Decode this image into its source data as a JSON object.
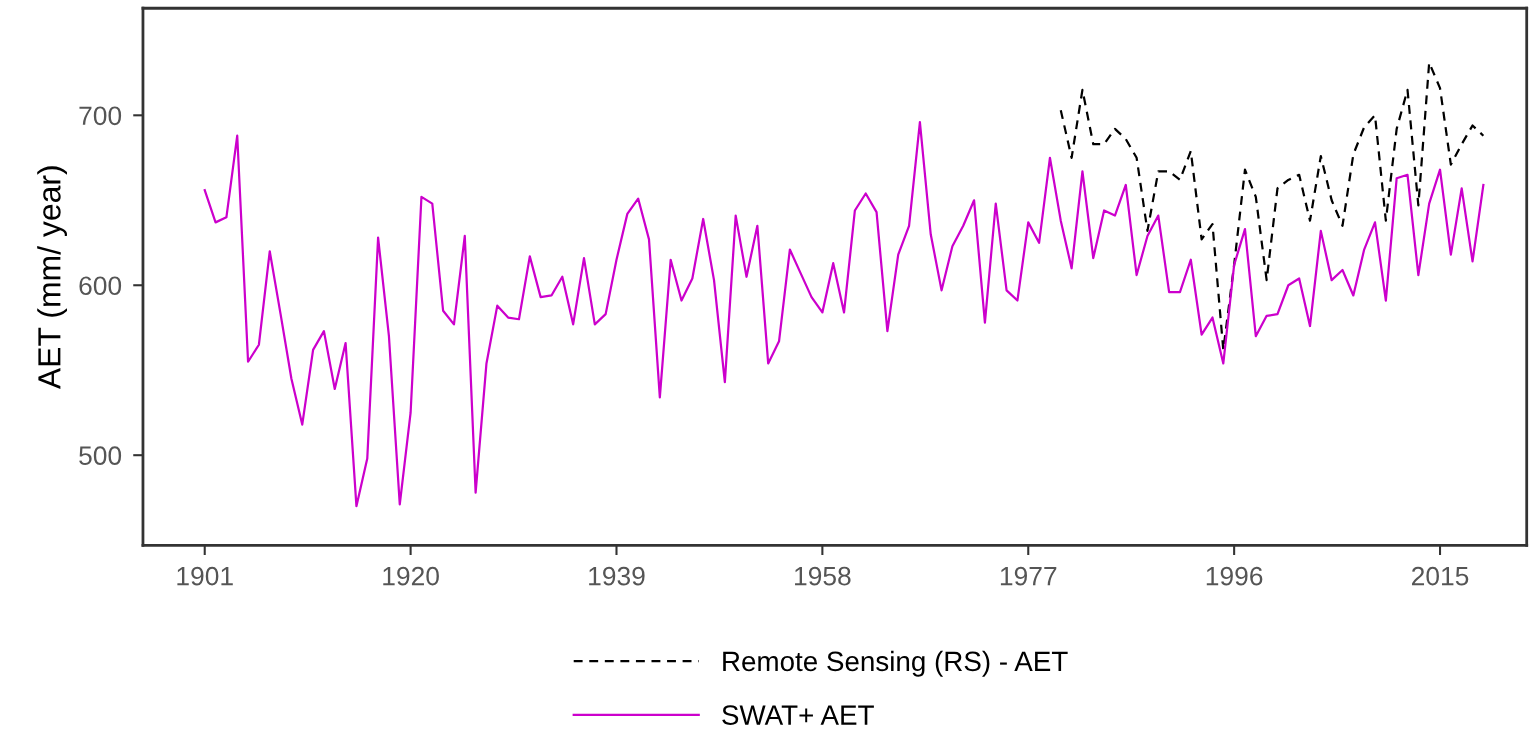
{
  "chart_data": {
    "type": "line",
    "ylabel": "AET (mm/ year)",
    "xlim": [
      1895.3,
      2023
    ],
    "xticks": [
      1901,
      1920,
      1939,
      1958,
      1977,
      1996,
      2015
    ],
    "ylim": [
      447,
      763
    ],
    "yticks": [
      500,
      600,
      700
    ],
    "grid": false,
    "legend": "bottom",
    "marker": "none",
    "series": [
      {
        "name": "Remote Sensing (RS) - AET",
        "color": "#000000",
        "line_style": "dashed",
        "x": [
          1980,
          1981,
          1982,
          1983,
          1984,
          1985,
          1986,
          1987,
          1988,
          1989,
          1990,
          1991,
          1992,
          1993,
          1994,
          1995,
          1996,
          1997,
          1998,
          1999,
          2000,
          2001,
          2002,
          2003,
          2004,
          2005,
          2006,
          2007,
          2008,
          2009,
          2010,
          2011,
          2012,
          2013,
          2014,
          2015,
          2016,
          2017,
          2018,
          2019
        ],
        "values": [
          703,
          675,
          715,
          683,
          683,
          692,
          686,
          675,
          632,
          667,
          667,
          662,
          679,
          627,
          636,
          562,
          612,
          668,
          652,
          603,
          657,
          662,
          665,
          638,
          676,
          650,
          635,
          677,
          693,
          700,
          638,
          692,
          715,
          647,
          731,
          716,
          671,
          683,
          694,
          688
        ]
      },
      {
        "name": "SWAT+ AET",
        "color": "#cc00cc",
        "line_style": "solid",
        "x": [
          1901,
          1902,
          1903,
          1904,
          1905,
          1906,
          1907,
          1908,
          1909,
          1910,
          1911,
          1912,
          1913,
          1914,
          1915,
          1916,
          1917,
          1918,
          1919,
          1920,
          1921,
          1922,
          1923,
          1924,
          1925,
          1926,
          1927,
          1928,
          1929,
          1930,
          1931,
          1932,
          1933,
          1934,
          1935,
          1936,
          1937,
          1938,
          1939,
          1940,
          1941,
          1942,
          1943,
          1944,
          1945,
          1946,
          1947,
          1948,
          1949,
          1950,
          1951,
          1952,
          1953,
          1954,
          1955,
          1956,
          1957,
          1958,
          1959,
          1960,
          1961,
          1962,
          1963,
          1964,
          1965,
          1966,
          1967,
          1968,
          1969,
          1970,
          1971,
          1972,
          1973,
          1974,
          1975,
          1976,
          1977,
          1978,
          1979,
          1980,
          1981,
          1982,
          1983,
          1984,
          1985,
          1986,
          1987,
          1988,
          1989,
          1990,
          1991,
          1992,
          1993,
          1994,
          1995,
          1996,
          1997,
          1998,
          1999,
          2000,
          2001,
          2002,
          2003,
          2004,
          2005,
          2006,
          2007,
          2008,
          2009,
          2010,
          2011,
          2012,
          2013,
          2014,
          2015,
          2016,
          2017,
          2018,
          2019
        ],
        "values": [
          656,
          637,
          640,
          688,
          555,
          565,
          620,
          583,
          545,
          518,
          562,
          573,
          539,
          566,
          470,
          498,
          628,
          570,
          471,
          525,
          652,
          648,
          585,
          577,
          629,
          478,
          554,
          588,
          581,
          580,
          617,
          593,
          594,
          605,
          577,
          616,
          577,
          583,
          615,
          642,
          651,
          627,
          534,
          615,
          591,
          604,
          639,
          603,
          543,
          641,
          605,
          635,
          554,
          567,
          621,
          607,
          593,
          584,
          613,
          584,
          644,
          654,
          643,
          573,
          618,
          635,
          696,
          630,
          597,
          623,
          635,
          650,
          578,
          648,
          597,
          591,
          637,
          625,
          675,
          638,
          610,
          667,
          616,
          644,
          641,
          659,
          606,
          629,
          641,
          596,
          596,
          615,
          571,
          581,
          554,
          612,
          633,
          570,
          582,
          583,
          600,
          604,
          576,
          632,
          603,
          609,
          594,
          621,
          637,
          591,
          663,
          665,
          606,
          648,
          668,
          618,
          657,
          614,
          659
        ]
      }
    ]
  }
}
